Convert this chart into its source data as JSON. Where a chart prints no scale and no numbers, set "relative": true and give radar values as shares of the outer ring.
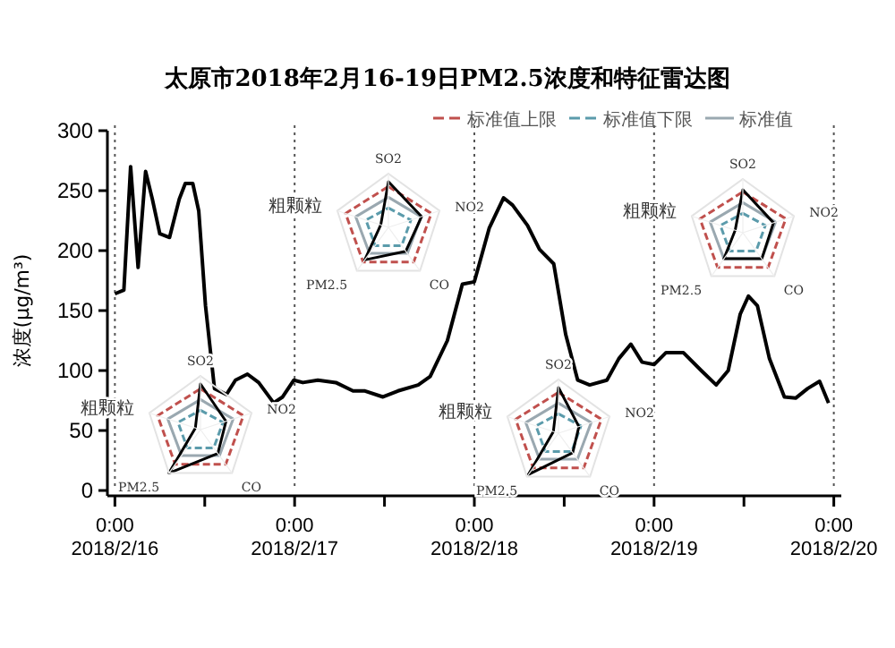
{
  "chart_data": [
    {
      "type": "line",
      "title": "太原市2018年2月16-19日PM2.5浓度和特征雷达图",
      "ylabel": "浓度(μg/m³)",
      "xlim": [
        "2018-02-15T23:00",
        "2018-02-20T01:00"
      ],
      "ylim": [
        0,
        300
      ],
      "yticks": [
        0,
        50,
        100,
        150,
        200,
        250,
        300
      ],
      "xticks": [
        {
          "value": "2018-02-16T00:00",
          "label": "0:00\n2018/2/16"
        },
        {
          "value": "2018-02-16T12:00",
          "label": null
        },
        {
          "value": "2018-02-17T00:00",
          "label": "0:00\n2018/2/17"
        },
        {
          "value": "2018-02-17T12:00",
          "label": null
        },
        {
          "value": "2018-02-18T00:00",
          "label": "0:00\n2018/2/18"
        },
        {
          "value": "2018-02-18T12:00",
          "label": null
        },
        {
          "value": "2018-02-19T00:00",
          "label": "0:00\n2018/2/19"
        },
        {
          "value": "2018-02-19T12:00",
          "label": null
        },
        {
          "value": "2018-02-20T00:00",
          "label": "0:00\n2018/2/20"
        }
      ],
      "ref_lines": [
        {
          "axis": "x",
          "value": "2018-02-16T00:00",
          "color": "#555555",
          "line_style": "dotted"
        },
        {
          "axis": "x",
          "value": "2018-02-17T00:00",
          "color": "#555555",
          "line_style": "dotted"
        },
        {
          "axis": "x",
          "value": "2018-02-18T00:00",
          "color": "#555555",
          "line_style": "dotted"
        },
        {
          "axis": "x",
          "value": "2018-02-19T00:00",
          "color": "#555555",
          "line_style": "dotted"
        },
        {
          "axis": "x",
          "value": "2018-02-20T00:00",
          "color": "#555555",
          "line_style": "dotted"
        }
      ],
      "series": [
        {
          "color": "#000000",
          "line_style": "solid",
          "x": [
            "2018-02-16T00:00",
            "2018-02-16T01:12",
            "2018-02-16T02:06",
            "2018-02-16T03:06",
            "2018-02-16T04:06",
            "2018-02-16T05:00",
            "2018-02-16T06:00",
            "2018-02-16T07:18",
            "2018-02-16T08:36",
            "2018-02-16T09:24",
            "2018-02-16T10:24",
            "2018-02-16T11:12",
            "2018-02-16T12:06",
            "2018-02-16T13:18",
            "2018-02-16T14:54",
            "2018-02-16T16:06",
            "2018-02-16T17:42",
            "2018-02-16T19:12",
            "2018-02-16T21:12",
            "2018-02-16T22:24",
            "2018-02-16T23:54",
            "2018-02-17T01:06",
            "2018-02-17T03:06",
            "2018-02-17T05:30",
            "2018-02-17T07:48",
            "2018-02-17T09:24",
            "2018-02-17T11:48",
            "2018-02-17T13:48",
            "2018-02-17T16:30",
            "2018-02-17T18:06",
            "2018-02-17T20:24",
            "2018-02-17T22:24",
            "2018-02-18T00:00",
            "2018-02-18T02:00",
            "2018-02-18T03:54",
            "2018-02-18T05:06",
            "2018-02-18T07:06",
            "2018-02-18T08:42",
            "2018-02-18T10:36",
            "2018-02-18T12:12",
            "2018-02-18T13:48",
            "2018-02-18T15:24",
            "2018-02-18T17:42",
            "2018-02-18T19:18",
            "2018-02-18T20:54",
            "2018-02-18T22:24",
            "2018-02-19T00:00",
            "2018-02-19T01:36",
            "2018-02-19T03:54",
            "2018-02-19T06:18",
            "2018-02-19T08:18",
            "2018-02-19T09:54",
            "2018-02-19T11:30",
            "2018-02-19T12:36",
            "2018-02-19T13:48",
            "2018-02-19T15:24",
            "2018-02-19T17:24",
            "2018-02-19T18:54",
            "2018-02-19T20:30",
            "2018-02-19T22:06",
            "2018-02-19T23:18"
          ],
          "values": [
            164,
            167,
            270,
            186,
            266,
            243,
            214,
            211,
            243,
            256,
            256,
            233,
            154,
            85,
            80,
            92,
            97,
            90,
            73,
            78,
            92,
            90,
            92,
            90,
            83,
            83,
            78,
            83,
            88,
            95,
            125,
            172,
            174,
            219,
            244,
            238,
            221,
            201,
            189,
            130,
            92,
            88,
            92,
            110,
            122,
            107,
            105,
            115,
            115,
            100,
            88,
            100,
            147,
            162,
            154,
            110,
            78,
            77,
            85,
            91,
            73
          ]
        }
      ]
    },
    {
      "type": "radar",
      "relative": true,
      "categories": [
        "SO2",
        "NO2",
        "CO",
        "PM2.5",
        "粗颗粒"
      ],
      "legend": "top right",
      "series": [
        {
          "name": "标准值上限",
          "color": "#c0504d",
          "line_style": "dashed",
          "values": [
            0.76,
            0.84,
            0.8,
            0.8,
            0.84
          ]
        },
        {
          "name": "标准值下限",
          "color": "#5b9bab",
          "line_style": "dashed",
          "values": [
            0.36,
            0.44,
            0.42,
            0.42,
            0.44
          ]
        },
        {
          "name": "标准值",
          "color": "#9aa8b0",
          "line_style": "solid",
          "values": [
            0.56,
            0.64,
            0.6,
            0.6,
            0.64
          ]
        },
        {
          "color": "#000000",
          "line_style": "solid",
          "values": [
            0.85,
            0.5,
            0.55,
            1,
            0.1
          ]
        }
      ]
    },
    {
      "type": "radar",
      "relative": true,
      "categories": [
        "SO2",
        "NO2",
        "CO",
        "PM2.5",
        "粗颗粒"
      ],
      "series": [
        {
          "color": "#c0504d",
          "line_style": "dashed",
          "values": [
            0.76,
            0.84,
            0.8,
            0.8,
            0.84
          ]
        },
        {
          "color": "#5b9bab",
          "line_style": "dashed",
          "values": [
            0.36,
            0.44,
            0.42,
            0.42,
            0.44
          ]
        },
        {
          "color": "#9aa8b0",
          "line_style": "solid",
          "values": [
            0.56,
            0.64,
            0.6,
            0.6,
            0.64
          ]
        },
        {
          "color": "#000000",
          "line_style": "solid",
          "values": [
            0.85,
            0.65,
            0.55,
            0.75,
            0.15
          ]
        }
      ]
    },
    {
      "type": "radar",
      "relative": true,
      "categories": [
        "SO2",
        "NO2",
        "CO",
        "PM2.5",
        "粗颗粒"
      ],
      "series": [
        {
          "color": "#c0504d",
          "line_style": "dashed",
          "values": [
            0.76,
            0.84,
            0.8,
            0.8,
            0.84
          ]
        },
        {
          "color": "#5b9bab",
          "line_style": "dashed",
          "values": [
            0.36,
            0.44,
            0.42,
            0.42,
            0.44
          ]
        },
        {
          "color": "#9aa8b0",
          "line_style": "solid",
          "values": [
            0.56,
            0.64,
            0.6,
            0.6,
            0.64
          ]
        },
        {
          "color": "#000000",
          "line_style": "solid",
          "values": [
            0.85,
            0.4,
            0.45,
            0.95,
            0.1
          ]
        }
      ]
    },
    {
      "type": "radar",
      "relative": true,
      "categories": [
        "SO2",
        "NO2",
        "CO",
        "PM2.5",
        "粗颗粒"
      ],
      "series": [
        {
          "color": "#c0504d",
          "line_style": "dashed",
          "values": [
            0.76,
            0.84,
            0.8,
            0.8,
            0.84
          ]
        },
        {
          "color": "#5b9bab",
          "line_style": "dashed",
          "values": [
            0.36,
            0.44,
            0.42,
            0.42,
            0.44
          ]
        },
        {
          "color": "#9aa8b0",
          "line_style": "solid",
          "values": [
            0.56,
            0.64,
            0.6,
            0.6,
            0.64
          ]
        },
        {
          "color": "#000000",
          "line_style": "solid",
          "values": [
            0.8,
            0.6,
            0.6,
            0.6,
            0.15
          ]
        }
      ]
    }
  ]
}
